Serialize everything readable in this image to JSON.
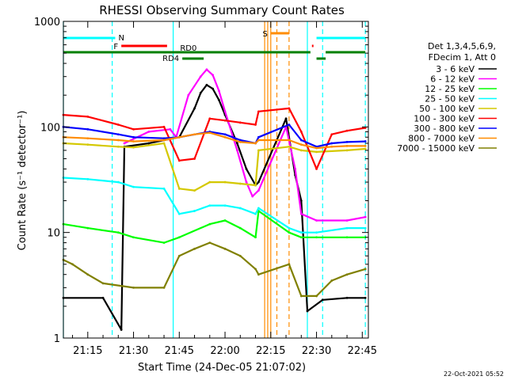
{
  "chart_data": {
    "type": "line",
    "title": "RHESSI Observing Summary Count Rates",
    "xlabel": "Start Time (24-Dec-05 21:07:02)",
    "ylabel": "Count Rate (s⁻¹ detector⁻¹)",
    "x_unit": "minutes UT on 24-Dec-05",
    "x_range": [
      "21:07",
      "22:47"
    ],
    "x_ticks": [
      "21:15",
      "21:30",
      "21:45",
      "22:00",
      "22:15",
      "22:30",
      "22:45"
    ],
    "y_scale": "log",
    "y_range": [
      1,
      1000
    ],
    "y_ticks": [
      "1",
      "10",
      "100",
      "1000"
    ],
    "legend_header": [
      "Det 1,3,4,5,6,9,",
      "FDecim 1, Att 0"
    ],
    "legend_placement": "right",
    "series": [
      {
        "name": "3 - 6 keV",
        "color": "#000000",
        "points": [
          [
            "21:07",
            2.4
          ],
          [
            "21:20",
            2.4
          ],
          [
            "21:26",
            1.2
          ],
          [
            "21:27",
            65
          ],
          [
            "21:35",
            70
          ],
          [
            "21:40",
            75
          ],
          [
            "21:45",
            80
          ],
          [
            "21:50",
            150
          ],
          [
            "21:52",
            210
          ],
          [
            "21:54",
            250
          ],
          [
            "21:56",
            230
          ],
          [
            "21:58",
            180
          ],
          [
            "22:00",
            130
          ],
          [
            "22:04",
            70
          ],
          [
            "22:07",
            40
          ],
          [
            "22:10",
            28
          ],
          [
            "22:11",
            30
          ],
          [
            "22:20",
            120
          ],
          [
            "22:23",
            35
          ],
          [
            "22:25",
            20
          ],
          [
            "22:27",
            1.8
          ],
          [
            "22:32",
            2.3
          ],
          [
            "22:40",
            2.4
          ],
          [
            "22:46",
            2.4
          ]
        ]
      },
      {
        "name": "6 - 12 keV",
        "color": "#ff00ff",
        "points": [
          [
            "21:27",
            70
          ],
          [
            "21:35",
            90
          ],
          [
            "21:42",
            95
          ],
          [
            "21:44",
            80
          ],
          [
            "21:48",
            200
          ],
          [
            "21:52",
            300
          ],
          [
            "21:54",
            350
          ],
          [
            "21:56",
            310
          ],
          [
            "21:58",
            220
          ],
          [
            "22:00",
            140
          ],
          [
            "22:04",
            60
          ],
          [
            "22:07",
            30
          ],
          [
            "22:09",
            22
          ],
          [
            "22:11",
            25
          ],
          [
            "22:20",
            100
          ],
          [
            "22:23",
            40
          ],
          [
            "22:25",
            15
          ],
          [
            "22:30",
            13
          ],
          [
            "22:40",
            13
          ],
          [
            "22:46",
            14
          ]
        ]
      },
      {
        "name": "12 - 25 keV",
        "color": "#00ff00",
        "points": [
          [
            "21:07",
            12
          ],
          [
            "21:15",
            11
          ],
          [
            "21:25",
            10
          ],
          [
            "21:30",
            9
          ],
          [
            "21:40",
            8
          ],
          [
            "21:45",
            9
          ],
          [
            "21:55",
            12
          ],
          [
            "22:00",
            13
          ],
          [
            "22:05",
            11
          ],
          [
            "22:10",
            9
          ],
          [
            "22:11",
            16
          ],
          [
            "22:21",
            10
          ],
          [
            "22:25",
            9
          ],
          [
            "22:30",
            9
          ],
          [
            "22:40",
            9
          ],
          [
            "22:46",
            9
          ]
        ]
      },
      {
        "name": "25 - 50 keV",
        "color": "#00ffff",
        "points": [
          [
            "21:07",
            33
          ],
          [
            "21:15",
            32
          ],
          [
            "21:25",
            30
          ],
          [
            "21:30",
            27
          ],
          [
            "21:40",
            26
          ],
          [
            "21:45",
            15
          ],
          [
            "21:50",
            16
          ],
          [
            "21:55",
            18
          ],
          [
            "22:00",
            18
          ],
          [
            "22:05",
            17
          ],
          [
            "22:10",
            15
          ],
          [
            "22:11",
            17
          ],
          [
            "22:21",
            11
          ],
          [
            "22:25",
            10
          ],
          [
            "22:30",
            10
          ],
          [
            "22:40",
            11
          ],
          [
            "22:46",
            11
          ]
        ]
      },
      {
        "name": "50 - 100 keV",
        "color": "#d4c800",
        "points": [
          [
            "21:07",
            70
          ],
          [
            "21:15",
            68
          ],
          [
            "21:25",
            65
          ],
          [
            "21:30",
            64
          ],
          [
            "21:40",
            70
          ],
          [
            "21:45",
            26
          ],
          [
            "21:50",
            25
          ],
          [
            "21:55",
            30
          ],
          [
            "22:00",
            30
          ],
          [
            "22:05",
            29
          ],
          [
            "22:10",
            28
          ],
          [
            "22:11",
            60
          ],
          [
            "22:21",
            65
          ],
          [
            "22:25",
            60
          ],
          [
            "22:30",
            58
          ],
          [
            "22:40",
            60
          ],
          [
            "22:46",
            62
          ]
        ]
      },
      {
        "name": "100 - 300 keV",
        "color": "#ff0000",
        "points": [
          [
            "21:07",
            130
          ],
          [
            "21:15",
            125
          ],
          [
            "21:25",
            105
          ],
          [
            "21:30",
            95
          ],
          [
            "21:40",
            100
          ],
          [
            "21:45",
            48
          ],
          [
            "21:50",
            50
          ],
          [
            "21:55",
            120
          ],
          [
            "22:00",
            115
          ],
          [
            "22:05",
            110
          ],
          [
            "22:10",
            105
          ],
          [
            "22:11",
            140
          ],
          [
            "22:21",
            150
          ],
          [
            "22:25",
            90
          ],
          [
            "22:30",
            40
          ],
          [
            "22:35",
            85
          ],
          [
            "22:40",
            92
          ],
          [
            "22:46",
            98
          ]
        ]
      },
      {
        "name": "300 - 800 keV",
        "color": "#0000ff",
        "points": [
          [
            "21:07",
            100
          ],
          [
            "21:15",
            95
          ],
          [
            "21:25",
            85
          ],
          [
            "21:30",
            80
          ],
          [
            "21:40",
            78
          ],
          [
            "21:45",
            80
          ],
          [
            "21:55",
            90
          ],
          [
            "22:00",
            85
          ],
          [
            "22:05",
            75
          ],
          [
            "22:10",
            70
          ],
          [
            "22:11",
            80
          ],
          [
            "22:21",
            105
          ],
          [
            "22:25",
            75
          ],
          [
            "22:30",
            65
          ],
          [
            "22:35",
            70
          ],
          [
            "22:40",
            72
          ],
          [
            "22:46",
            73
          ]
        ]
      },
      {
        "name": "800 - 7000 keV",
        "color": "#ff8c00",
        "points": [
          [
            "21:07",
            80
          ],
          [
            "21:15",
            78
          ],
          [
            "21:25",
            75
          ],
          [
            "21:30",
            73
          ],
          [
            "21:40",
            75
          ],
          [
            "21:45",
            80
          ],
          [
            "21:50",
            85
          ],
          [
            "21:55",
            88
          ],
          [
            "22:00",
            80
          ],
          [
            "22:05",
            72
          ],
          [
            "22:10",
            70
          ],
          [
            "22:11",
            75
          ],
          [
            "22:21",
            75
          ],
          [
            "22:25",
            68
          ],
          [
            "22:30",
            63
          ],
          [
            "22:35",
            65
          ],
          [
            "22:40",
            66
          ],
          [
            "22:46",
            66
          ]
        ]
      },
      {
        "name": "7000 - 15000 keV",
        "color": "#808000",
        "points": [
          [
            "21:07",
            5.5
          ],
          [
            "21:10",
            5
          ],
          [
            "21:15",
            4
          ],
          [
            "21:20",
            3.3
          ],
          [
            "21:30",
            3
          ],
          [
            "21:40",
            3
          ],
          [
            "21:45",
            6
          ],
          [
            "21:50",
            7
          ],
          [
            "21:55",
            8
          ],
          [
            "22:00",
            7
          ],
          [
            "22:05",
            6
          ],
          [
            "22:10",
            4.5
          ],
          [
            "22:11",
            4
          ],
          [
            "22:21",
            5
          ],
          [
            "22:25",
            2.5
          ],
          [
            "22:30",
            2.5
          ],
          [
            "22:35",
            3.5
          ],
          [
            "22:40",
            4
          ],
          [
            "22:46",
            4.5
          ]
        ]
      }
    ],
    "annotations": {
      "flag_bars": [
        {
          "label": "N",
          "color": "#00ffff",
          "start": "21:07",
          "end": "21:24",
          "label_at": "21:24"
        },
        {
          "label": "",
          "color": "#00ffff",
          "start": "22:30",
          "end": "22:46"
        },
        {
          "label": "F",
          "color": "#ff0000",
          "start": "21:26",
          "end": "21:41",
          "label_at": "21:26"
        },
        {
          "label": "",
          "color": "#ff0000",
          "start": "22:28.5",
          "end": "22:29"
        },
        {
          "label": "S",
          "color": "#ff8c00",
          "start": "22:15",
          "end": "22:21",
          "label_at": "22:15"
        },
        {
          "label": "RD0",
          "color": "#008000",
          "start": "21:07",
          "end": "22:46",
          "gaps": [
            [
              "22:28",
              "22:33"
            ]
          ],
          "label_at": "21:48"
        },
        {
          "label": "",
          "color": "#008000",
          "start": "22:30",
          "end": "22:33",
          "row": "rd4"
        },
        {
          "label": "RD4",
          "color": "#008000",
          "start": "21:46",
          "end": "21:53",
          "label_at": "21:46"
        }
      ],
      "vertical_markers": [
        {
          "time": "21:07",
          "color": "#00ffff",
          "style": "solid"
        },
        {
          "time": "21:23",
          "color": "#00ffff",
          "style": "dashed"
        },
        {
          "time": "21:43",
          "color": "#00ffff",
          "style": "solid"
        },
        {
          "time": "22:13",
          "color": "#ff8c00",
          "style": "solid"
        },
        {
          "time": "22:14",
          "color": "#ff8c00",
          "style": "solid"
        },
        {
          "time": "22:15",
          "color": "#ff8c00",
          "style": "solid"
        },
        {
          "time": "22:17",
          "color": "#ff8c00",
          "style": "dashed"
        },
        {
          "time": "22:21",
          "color": "#ff8c00",
          "style": "dashed"
        },
        {
          "time": "22:27",
          "color": "#00ffff",
          "style": "solid"
        },
        {
          "time": "22:32",
          "color": "#00ffff",
          "style": "dashed"
        },
        {
          "time": "22:46",
          "color": "#00ffff",
          "style": "dashed"
        }
      ]
    },
    "footer_date": "22-Oct-2021 05:52"
  }
}
